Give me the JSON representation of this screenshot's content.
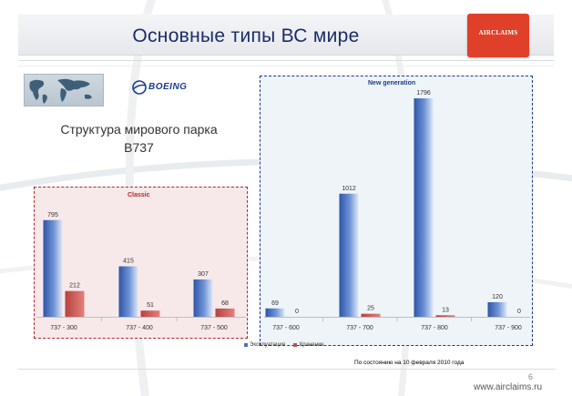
{
  "header": {
    "title": "Основные типы ВС мире",
    "logo_text": "AIRCLAIMS"
  },
  "left": {
    "boeing_logo_text": "BOEING",
    "structure_line1": "Структура мирового парка",
    "structure_line2": "B737"
  },
  "chart_data": {
    "type": "bar",
    "title": "",
    "xlabel": "",
    "ylabel": "",
    "ylim": [
      0,
      1850
    ],
    "grid": false,
    "legend_position": "bottom",
    "groups": [
      {
        "name": "Classic",
        "categories": [
          "737 - 300",
          "737 - 400",
          "737 - 500"
        ]
      },
      {
        "name": "New generation",
        "categories": [
          "737 - 600",
          "737 - 700",
          "737 - 800",
          "737 - 900"
        ]
      }
    ],
    "categories": [
      "737 - 300",
      "737 - 400",
      "737 - 500",
      "737 - 600",
      "737 - 700",
      "737 - 800",
      "737 - 900"
    ],
    "series": [
      {
        "name": "Эксплуатация",
        "color": "#4a72c0",
        "values": [
          795,
          415,
          307,
          69,
          1012,
          1796,
          120
        ]
      },
      {
        "name": "Хранение",
        "color": "#c0504d",
        "values": [
          212,
          51,
          68,
          0,
          25,
          13,
          0
        ]
      }
    ],
    "panel_colors": {
      "classic": "#b3262b",
      "new_generation": "#1f3a8a"
    }
  },
  "footer": {
    "note": "По состоянию на 10 февраля  2010 года",
    "page_number": "6",
    "website": "www.airclaims.ru"
  }
}
